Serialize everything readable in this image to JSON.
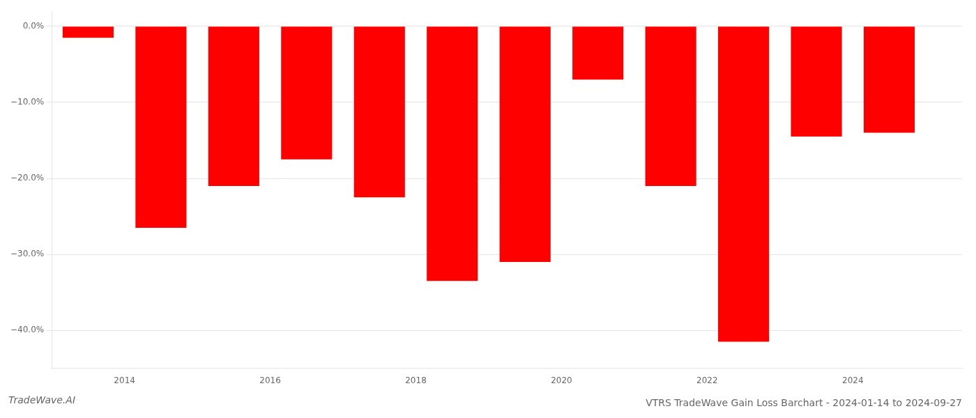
{
  "chart_data": {
    "type": "bar",
    "title": "VTRS TradeWave Gain Loss Barchart - 2024-01-14 to 2024-09-27",
    "annotations": [
      "TradeWave.AI"
    ],
    "x": [
      2013.5,
      2014.5,
      2015.5,
      2016.5,
      2017.5,
      2018.5,
      2019.5,
      2020.5,
      2021.5,
      2022.5,
      2023.5,
      2024.5
    ],
    "values": [
      -1.5,
      -26.5,
      -21.0,
      -17.5,
      -22.5,
      -33.5,
      -31.0,
      -7.0,
      -21.0,
      -41.5,
      -14.5,
      -14.0
    ],
    "color": "#ff0000",
    "xlim": [
      2013.0,
      2025.5
    ],
    "xticks": [
      2014,
      2016,
      2018,
      2020,
      2022,
      2024
    ],
    "ylim": [
      -45,
      2
    ],
    "yticks": [
      {
        "value": 0.0,
        "label": "0.0%"
      },
      {
        "value": -10.0,
        "label": "−10.0%"
      },
      {
        "value": -20.0,
        "label": "−20.0%"
      },
      {
        "value": -30.0,
        "label": "−30.0%"
      },
      {
        "value": -40.0,
        "label": "−40.0%"
      }
    ],
    "grid": true
  }
}
